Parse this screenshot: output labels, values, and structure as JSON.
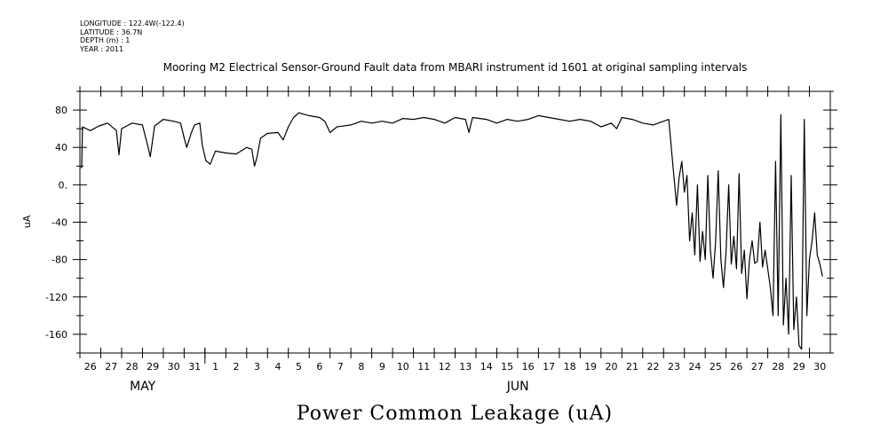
{
  "meta": {
    "longitude": "LONGITUDE : 122.4W(-122.4)",
    "latitude": "LATITUDE : 36.7N",
    "depth": "DEPTH (m) : 1",
    "year": "YEAR : 2011"
  },
  "chart_data": {
    "type": "line",
    "title": "Mooring M2 Electrical Sensor-Ground Fault data from MBARI instrument id 1601 at original sampling intervals",
    "xlabel": "Power Common Leakage (uA)",
    "ylabel": "uA",
    "x_range": [
      "2011-05-25T12:00",
      "2011-06-30T12:00"
    ],
    "ylim": [
      -180,
      100
    ],
    "y_ticks": [
      80,
      40,
      0,
      -40,
      -80,
      -120,
      -160
    ],
    "y_tick_labels": [
      "80",
      "40",
      "0.",
      "-40",
      "-80",
      "-120",
      "-160"
    ],
    "x_ticks": [
      {
        "date": "2011-05-26",
        "label": "26"
      },
      {
        "date": "2011-05-27",
        "label": "27"
      },
      {
        "date": "2011-05-28",
        "label": "28"
      },
      {
        "date": "2011-05-29",
        "label": "29"
      },
      {
        "date": "2011-05-30",
        "label": "30"
      },
      {
        "date": "2011-05-31",
        "label": "31"
      },
      {
        "date": "2011-06-01",
        "label": "1"
      },
      {
        "date": "2011-06-02",
        "label": "2"
      },
      {
        "date": "2011-06-03",
        "label": "3"
      },
      {
        "date": "2011-06-04",
        "label": "4"
      },
      {
        "date": "2011-06-05",
        "label": "5"
      },
      {
        "date": "2011-06-06",
        "label": "6"
      },
      {
        "date": "2011-06-07",
        "label": "7"
      },
      {
        "date": "2011-06-08",
        "label": "8"
      },
      {
        "date": "2011-06-09",
        "label": "9"
      },
      {
        "date": "2011-06-10",
        "label": "10"
      },
      {
        "date": "2011-06-11",
        "label": "11"
      },
      {
        "date": "2011-06-12",
        "label": "12"
      },
      {
        "date": "2011-06-13",
        "label": "13"
      },
      {
        "date": "2011-06-14",
        "label": "14"
      },
      {
        "date": "2011-06-15",
        "label": "15"
      },
      {
        "date": "2011-06-16",
        "label": "16"
      },
      {
        "date": "2011-06-17",
        "label": "17"
      },
      {
        "date": "2011-06-18",
        "label": "18"
      },
      {
        "date": "2011-06-19",
        "label": "19"
      },
      {
        "date": "2011-06-20",
        "label": "20"
      },
      {
        "date": "2011-06-21",
        "label": "21"
      },
      {
        "date": "2011-06-22",
        "label": "22"
      },
      {
        "date": "2011-06-23",
        "label": "23"
      },
      {
        "date": "2011-06-24",
        "label": "24"
      },
      {
        "date": "2011-06-25",
        "label": "25"
      },
      {
        "date": "2011-06-26",
        "label": "26"
      },
      {
        "date": "2011-06-27",
        "label": "27"
      },
      {
        "date": "2011-06-28",
        "label": "28"
      },
      {
        "date": "2011-06-29",
        "label": "29"
      },
      {
        "date": "2011-06-30",
        "label": "30"
      }
    ],
    "month_labels": [
      {
        "date": "2011-05-28",
        "label": "MAY"
      },
      {
        "date": "2011-06-15",
        "label": "JUN"
      }
    ],
    "series": [
      {
        "points": [
          [
            "2011-05-25T13:00",
            18
          ],
          [
            "2011-05-25T14:00",
            19
          ],
          [
            "2011-05-25T15:00",
            62
          ],
          [
            "2011-05-26T00:00",
            58
          ],
          [
            "2011-05-26T10:00",
            63
          ],
          [
            "2011-05-26T20:00",
            66
          ],
          [
            "2011-05-27T06:00",
            58
          ],
          [
            "2011-05-27T09:00",
            32
          ],
          [
            "2011-05-27T12:00",
            60
          ],
          [
            "2011-05-28T00:00",
            66
          ],
          [
            "2011-05-28T12:00",
            64
          ],
          [
            "2011-05-28T18:00",
            42
          ],
          [
            "2011-05-28T21:00",
            30
          ],
          [
            "2011-05-29T02:00",
            63
          ],
          [
            "2011-05-29T12:00",
            70
          ],
          [
            "2011-05-30T00:00",
            68
          ],
          [
            "2011-05-30T08:00",
            66
          ],
          [
            "2011-05-30T12:00",
            50
          ],
          [
            "2011-05-30T15:00",
            40
          ],
          [
            "2011-05-30T20:00",
            55
          ],
          [
            "2011-05-31T00:00",
            64
          ],
          [
            "2011-05-31T06:00",
            66
          ],
          [
            "2011-05-31T09:00",
            42
          ],
          [
            "2011-05-31T13:00",
            26
          ],
          [
            "2011-05-31T18:00",
            22
          ],
          [
            "2011-06-01T00:00",
            36
          ],
          [
            "2011-06-01T12:00",
            34
          ],
          [
            "2011-06-02T00:00",
            33
          ],
          [
            "2011-06-02T12:00",
            40
          ],
          [
            "2011-06-02T18:00",
            38
          ],
          [
            "2011-06-02T21:00",
            20
          ],
          [
            "2011-06-03T00:00",
            30
          ],
          [
            "2011-06-03T04:00",
            50
          ],
          [
            "2011-06-03T12:00",
            55
          ],
          [
            "2011-06-04T00:00",
            56
          ],
          [
            "2011-06-04T06:00",
            48
          ],
          [
            "2011-06-04T12:00",
            62
          ],
          [
            "2011-06-04T18:00",
            72
          ],
          [
            "2011-06-05T00:00",
            77
          ],
          [
            "2011-06-05T12:00",
            74
          ],
          [
            "2011-06-06T00:00",
            72
          ],
          [
            "2011-06-06T06:00",
            68
          ],
          [
            "2011-06-06T12:00",
            56
          ],
          [
            "2011-06-06T20:00",
            62
          ],
          [
            "2011-06-07T12:00",
            64
          ],
          [
            "2011-06-08T00:00",
            68
          ],
          [
            "2011-06-08T12:00",
            66
          ],
          [
            "2011-06-09T00:00",
            68
          ],
          [
            "2011-06-09T12:00",
            66
          ],
          [
            "2011-06-10T00:00",
            71
          ],
          [
            "2011-06-10T12:00",
            70
          ],
          [
            "2011-06-11T00:00",
            72
          ],
          [
            "2011-06-11T12:00",
            70
          ],
          [
            "2011-06-12T00:00",
            66
          ],
          [
            "2011-06-12T12:00",
            72
          ],
          [
            "2011-06-13T00:00",
            70
          ],
          [
            "2011-06-13T04:00",
            56
          ],
          [
            "2011-06-13T08:00",
            72
          ],
          [
            "2011-06-14T00:00",
            70
          ],
          [
            "2011-06-14T12:00",
            66
          ],
          [
            "2011-06-15T00:00",
            70
          ],
          [
            "2011-06-15T12:00",
            68
          ],
          [
            "2011-06-16T00:00",
            70
          ],
          [
            "2011-06-16T12:00",
            74
          ],
          [
            "2011-06-17T00:00",
            72
          ],
          [
            "2011-06-17T12:00",
            70
          ],
          [
            "2011-06-18T00:00",
            68
          ],
          [
            "2011-06-18T12:00",
            70
          ],
          [
            "2011-06-19T00:00",
            68
          ],
          [
            "2011-06-19T12:00",
            62
          ],
          [
            "2011-06-20T00:00",
            66
          ],
          [
            "2011-06-20T06:00",
            60
          ],
          [
            "2011-06-20T12:00",
            72
          ],
          [
            "2011-06-21T00:00",
            70
          ],
          [
            "2011-06-21T12:00",
            66
          ],
          [
            "2011-06-22T00:00",
            64
          ],
          [
            "2011-06-22T12:00",
            68
          ],
          [
            "2011-06-22T18:00",
            70
          ],
          [
            "2011-06-23T00:00",
            8
          ],
          [
            "2011-06-23T03:00",
            -22
          ],
          [
            "2011-06-23T06:00",
            8
          ],
          [
            "2011-06-23T09:00",
            25
          ],
          [
            "2011-06-23T12:00",
            -8
          ],
          [
            "2011-06-23T15:00",
            10
          ],
          [
            "2011-06-23T18:00",
            -60
          ],
          [
            "2011-06-23T21:00",
            -30
          ],
          [
            "2011-06-24T00:00",
            -75
          ],
          [
            "2011-06-24T03:00",
            0
          ],
          [
            "2011-06-24T06:00",
            -82
          ],
          [
            "2011-06-24T09:00",
            -50
          ],
          [
            "2011-06-24T12:00",
            -80
          ],
          [
            "2011-06-24T15:00",
            10
          ],
          [
            "2011-06-24T18:00",
            -70
          ],
          [
            "2011-06-24T21:00",
            -100
          ],
          [
            "2011-06-25T00:00",
            -60
          ],
          [
            "2011-06-25T03:00",
            15
          ],
          [
            "2011-06-25T06:00",
            -80
          ],
          [
            "2011-06-25T09:00",
            -110
          ],
          [
            "2011-06-25T12:00",
            -72
          ],
          [
            "2011-06-25T15:00",
            0
          ],
          [
            "2011-06-25T18:00",
            -85
          ],
          [
            "2011-06-25T21:00",
            -55
          ],
          [
            "2011-06-26T00:00",
            -90
          ],
          [
            "2011-06-26T03:00",
            12
          ],
          [
            "2011-06-26T06:00",
            -95
          ],
          [
            "2011-06-26T09:00",
            -70
          ],
          [
            "2011-06-26T12:00",
            -122
          ],
          [
            "2011-06-26T15:00",
            -80
          ],
          [
            "2011-06-26T18:00",
            -60
          ],
          [
            "2011-06-26T21:00",
            -84
          ],
          [
            "2011-06-27T00:00",
            -82
          ],
          [
            "2011-06-27T03:00",
            -40
          ],
          [
            "2011-06-27T06:00",
            -88
          ],
          [
            "2011-06-27T09:00",
            -70
          ],
          [
            "2011-06-27T12:00",
            -90
          ],
          [
            "2011-06-27T15:00",
            -110
          ],
          [
            "2011-06-27T18:00",
            -140
          ],
          [
            "2011-06-27T21:00",
            25
          ],
          [
            "2011-06-28T00:00",
            -140
          ],
          [
            "2011-06-28T03:00",
            75
          ],
          [
            "2011-06-28T06:00",
            -150
          ],
          [
            "2011-06-28T09:00",
            -100
          ],
          [
            "2011-06-28T12:00",
            -160
          ],
          [
            "2011-06-28T15:00",
            10
          ],
          [
            "2011-06-28T18:00",
            -155
          ],
          [
            "2011-06-28T21:00",
            -120
          ],
          [
            "2011-06-29T00:00",
            -172
          ],
          [
            "2011-06-29T03:00",
            -176
          ],
          [
            "2011-06-29T06:00",
            70
          ],
          [
            "2011-06-29T09:00",
            -140
          ],
          [
            "2011-06-29T12:00",
            -80
          ],
          [
            "2011-06-29T15:00",
            -60
          ],
          [
            "2011-06-29T18:00",
            -30
          ],
          [
            "2011-06-29T21:00",
            -75
          ],
          [
            "2011-06-30T00:00",
            -85
          ],
          [
            "2011-06-30T03:00",
            -98
          ]
        ]
      }
    ],
    "grid": false,
    "legend": "none"
  }
}
